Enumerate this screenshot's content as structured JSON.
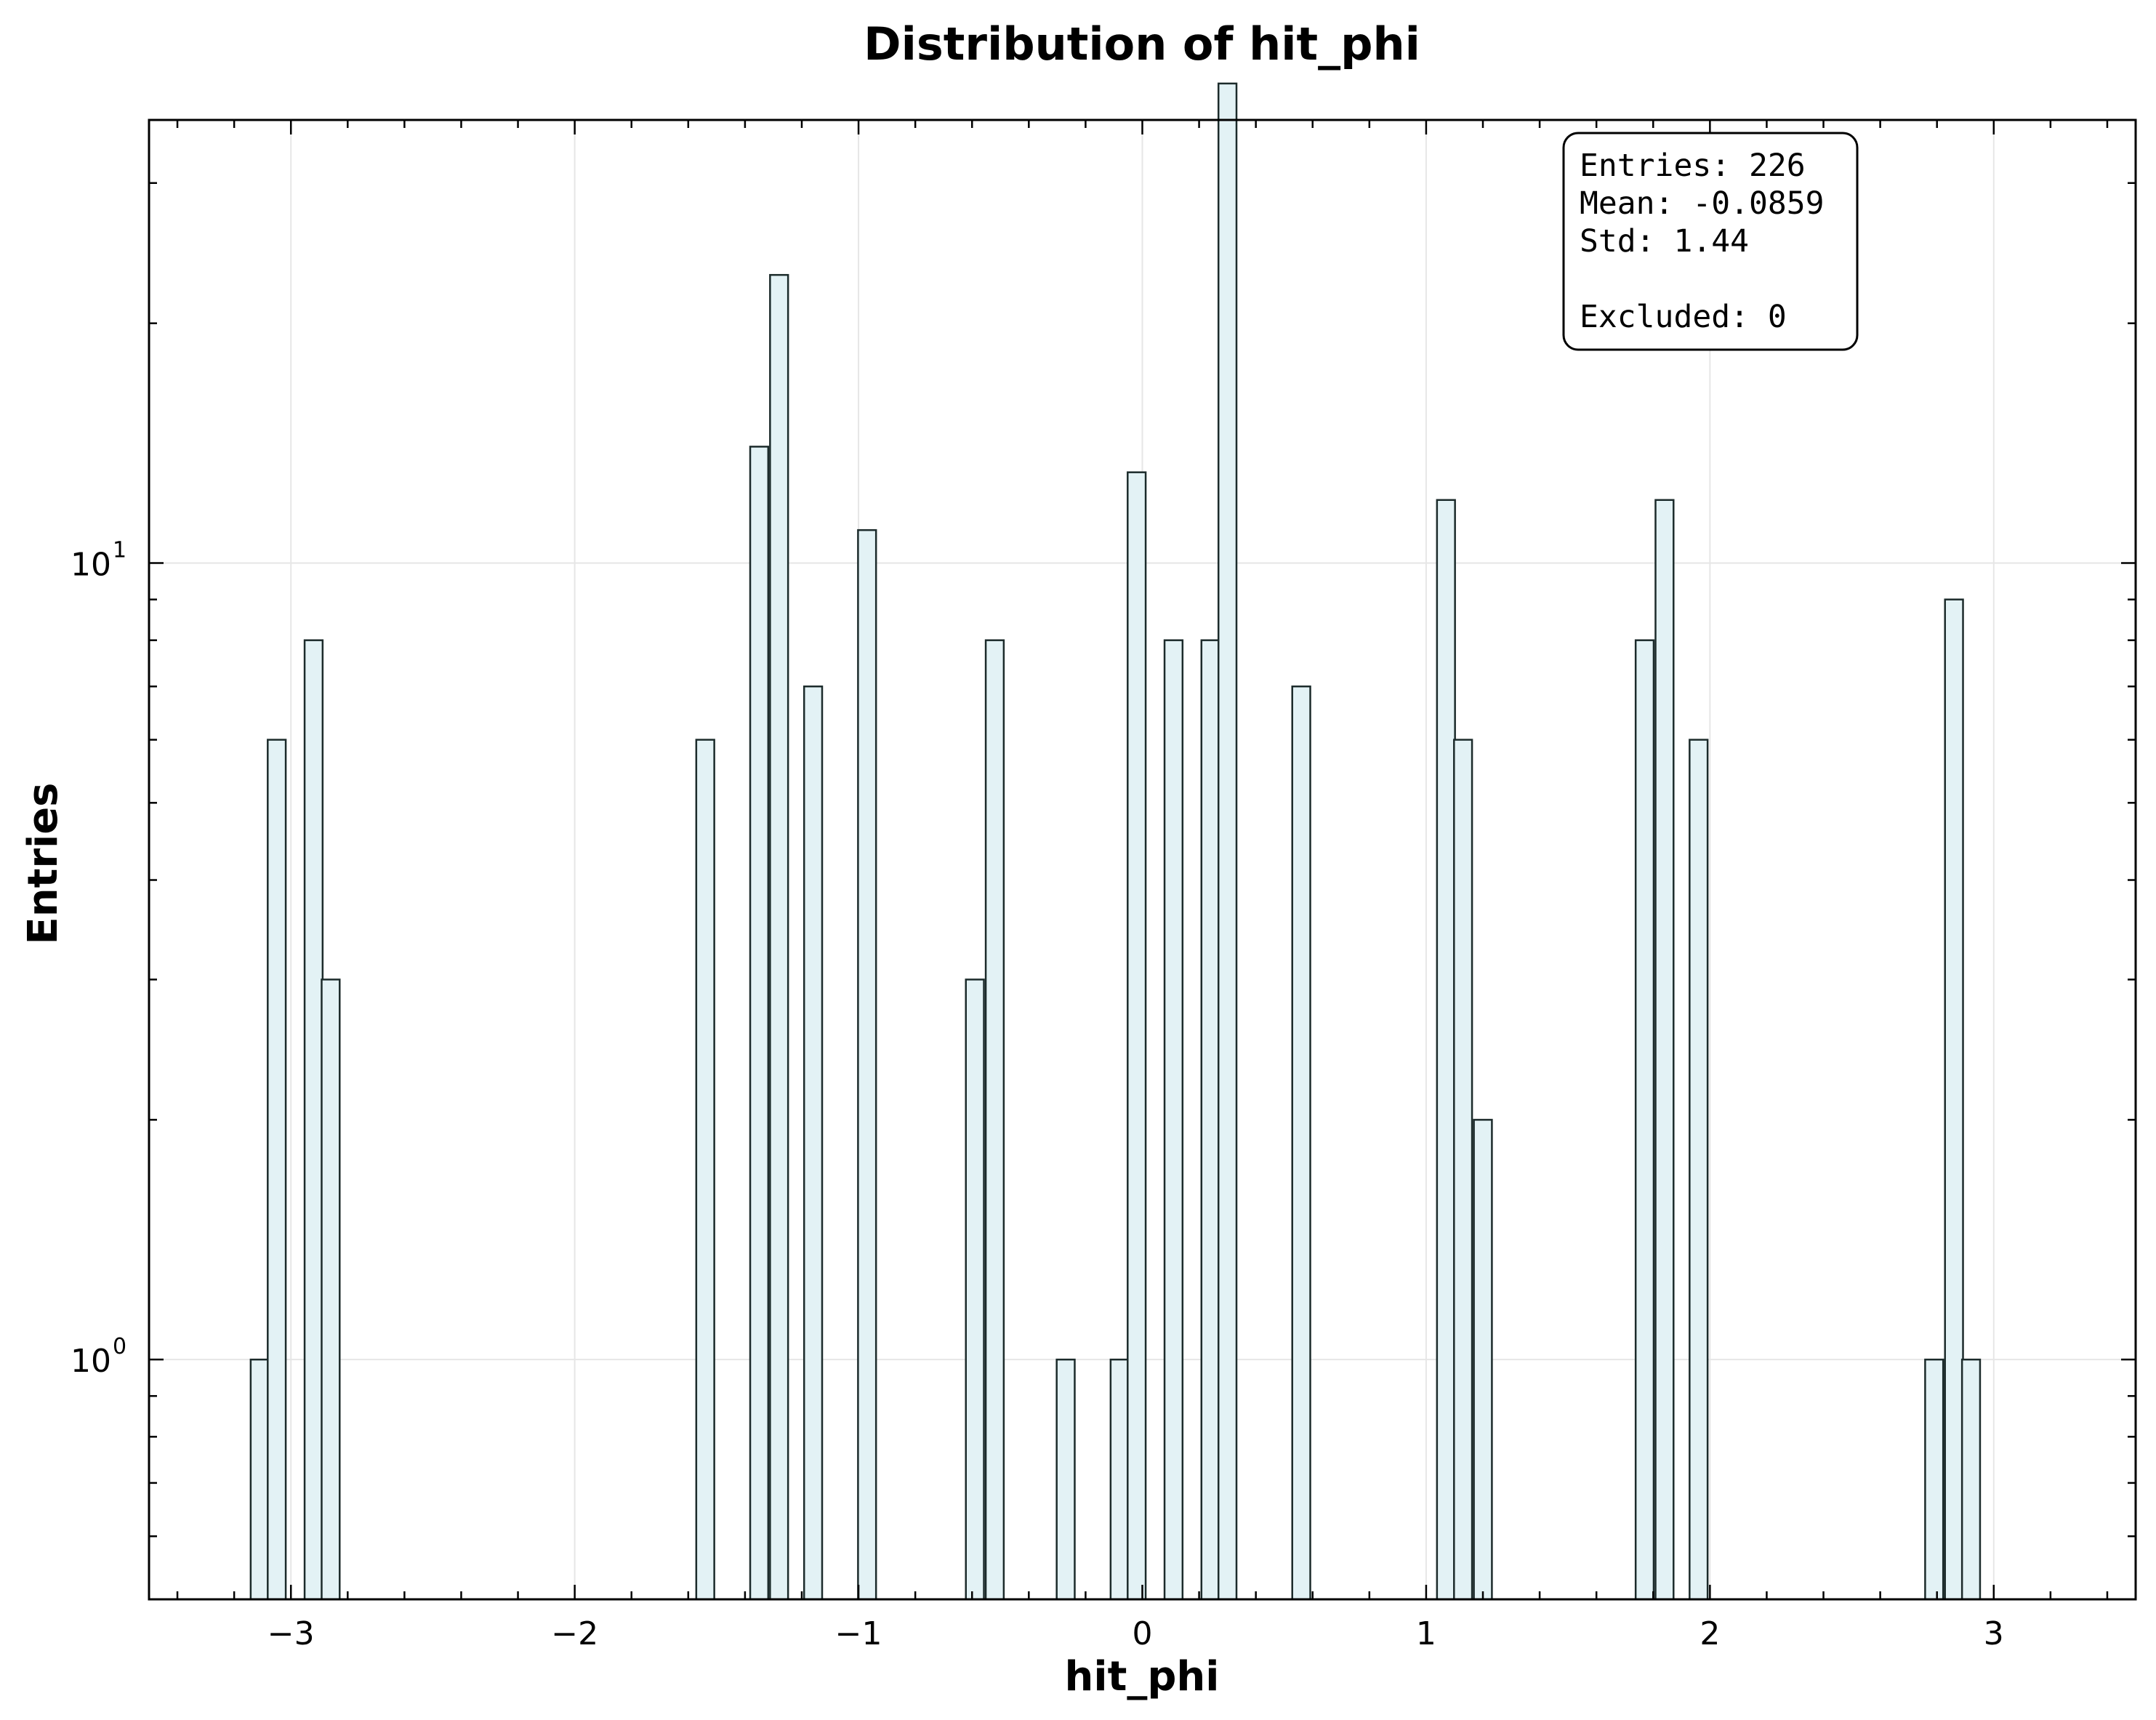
{
  "chart_data": {
    "type": "bar",
    "title": "Distribution of hit_phi",
    "xlabel": "hit_phi",
    "ylabel": "Entries",
    "xlim": [
      -3.5,
      3.5
    ],
    "ylim": [
      0.5,
      36
    ],
    "yscale": "log",
    "grid": true,
    "bin_width": 0.0635,
    "xticks": [
      -3,
      -2,
      -1,
      0,
      1,
      2,
      3
    ],
    "xtick_labels": [
      "−3",
      "−2",
      "−1",
      "0",
      "1",
      "2",
      "3"
    ],
    "yticks": [
      {
        "value": 1,
        "base": "10",
        "exp": "0"
      },
      {
        "value": 10,
        "base": "10",
        "exp": "1"
      }
    ],
    "bins": [
      {
        "x": -3.11,
        "count": 1
      },
      {
        "x": -3.05,
        "count": 6
      },
      {
        "x": -2.92,
        "count": 8
      },
      {
        "x": -2.86,
        "count": 3
      },
      {
        "x": -1.54,
        "count": 6
      },
      {
        "x": -1.35,
        "count": 14
      },
      {
        "x": -1.28,
        "count": 23
      },
      {
        "x": -1.16,
        "count": 7
      },
      {
        "x": -0.97,
        "count": 11
      },
      {
        "x": -0.59,
        "count": 3
      },
      {
        "x": -0.52,
        "count": 8
      },
      {
        "x": -0.27,
        "count": 1
      },
      {
        "x": -0.08,
        "count": 1
      },
      {
        "x": -0.02,
        "count": 13
      },
      {
        "x": 0.11,
        "count": 8
      },
      {
        "x": 0.24,
        "count": 8
      },
      {
        "x": 0.3,
        "count": 40
      },
      {
        "x": 0.56,
        "count": 7
      },
      {
        "x": 1.07,
        "count": 12
      },
      {
        "x": 1.13,
        "count": 6
      },
      {
        "x": 1.2,
        "count": 2
      },
      {
        "x": 1.77,
        "count": 8
      },
      {
        "x": 1.84,
        "count": 12
      },
      {
        "x": 1.96,
        "count": 6
      },
      {
        "x": 2.79,
        "count": 1
      },
      {
        "x": 2.86,
        "count": 9
      },
      {
        "x": 2.92,
        "count": 1
      }
    ]
  },
  "stats_box": {
    "entries": "Entries: 226",
    "mean": "Mean: -0.0859",
    "std": "Std: 1.44",
    "excluded": "Excluded: 0"
  }
}
